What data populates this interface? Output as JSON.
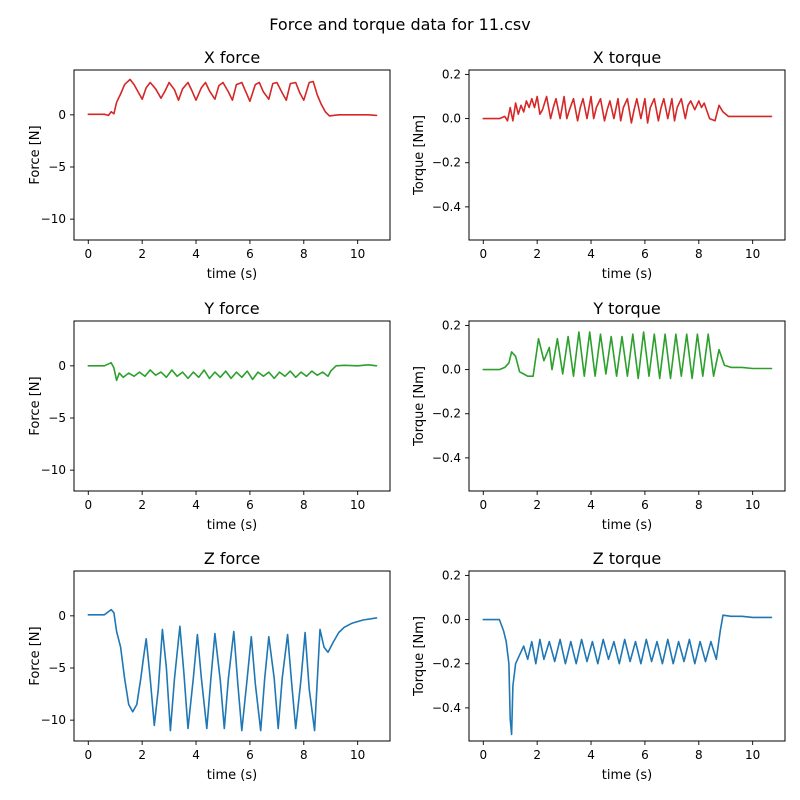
{
  "figure": {
    "title": "Force and torque data for 11.csv"
  },
  "chart_data": [
    {
      "type": "line",
      "title": "X force",
      "xlabel": "time (s)",
      "ylabel": "Force [N]",
      "color": "#d62728",
      "xlim": [
        -0.53,
        11.2
      ],
      "ylim": [
        -12,
        4.3
      ],
      "xticks": [
        0,
        2,
        4,
        6,
        8,
        10
      ],
      "yticks": [
        -10,
        -5,
        0
      ],
      "x": [
        0,
        0.2,
        0.4,
        0.6,
        0.75,
        0.85,
        0.95,
        1.05,
        1.2,
        1.35,
        1.55,
        1.7,
        1.85,
        2.0,
        2.15,
        2.3,
        2.5,
        2.7,
        2.85,
        3.0,
        3.2,
        3.35,
        3.5,
        3.7,
        3.85,
        4.0,
        4.2,
        4.35,
        4.5,
        4.7,
        4.85,
        5.0,
        5.2,
        5.35,
        5.5,
        5.7,
        5.85,
        6.0,
        6.2,
        6.35,
        6.5,
        6.7,
        6.85,
        7.0,
        7.2,
        7.35,
        7.5,
        7.7,
        7.85,
        8.0,
        8.2,
        8.35,
        8.5,
        8.65,
        8.8,
        8.95,
        9.1,
        9.3,
        9.6,
        10.0,
        10.4,
        10.7
      ],
      "y": [
        0.05,
        0.05,
        0.05,
        0.05,
        -0.05,
        0.3,
        0.1,
        1.2,
        2.0,
        2.9,
        3.4,
        2.9,
        2.2,
        1.5,
        2.6,
        3.1,
        2.5,
        1.6,
        2.3,
        3.1,
        2.4,
        1.4,
        2.5,
        3.1,
        2.3,
        1.4,
        2.6,
        3.1,
        2.3,
        1.5,
        2.8,
        3.1,
        2.2,
        1.4,
        2.9,
        3.1,
        2.2,
        1.3,
        2.9,
        3.1,
        2.2,
        1.5,
        3.0,
        3.1,
        2.1,
        1.4,
        3.0,
        3.1,
        2.1,
        1.4,
        3.1,
        3.2,
        1.9,
        1.0,
        0.3,
        -0.1,
        -0.05,
        0.0,
        0.0,
        0.0,
        0.0,
        -0.05
      ]
    },
    {
      "type": "line",
      "title": "X torque",
      "xlabel": "time (s)",
      "ylabel": "Torque [Nm]",
      "color": "#d62728",
      "xlim": [
        -0.53,
        11.2
      ],
      "ylim": [
        -0.55,
        0.22
      ],
      "xticks": [
        0,
        2,
        4,
        6,
        8,
        10
      ],
      "yticks": [
        -0.4,
        -0.2,
        0.0,
        0.2
      ],
      "x": [
        0,
        0.3,
        0.6,
        0.8,
        0.9,
        1.0,
        1.1,
        1.2,
        1.3,
        1.4,
        1.5,
        1.6,
        1.7,
        1.8,
        1.9,
        2.0,
        2.1,
        2.2,
        2.35,
        2.5,
        2.6,
        2.7,
        2.85,
        3.0,
        3.1,
        3.2,
        3.35,
        3.5,
        3.6,
        3.7,
        3.85,
        4.0,
        4.1,
        4.2,
        4.35,
        4.5,
        4.6,
        4.7,
        4.85,
        5.0,
        5.1,
        5.2,
        5.35,
        5.5,
        5.6,
        5.7,
        5.85,
        6.0,
        6.1,
        6.2,
        6.35,
        6.5,
        6.6,
        6.7,
        6.85,
        7.0,
        7.1,
        7.2,
        7.35,
        7.5,
        7.6,
        7.7,
        7.85,
        8.0,
        8.1,
        8.2,
        8.4,
        8.6,
        8.75,
        8.9,
        9.1,
        9.5,
        10.0,
        10.7
      ],
      "y": [
        0.0,
        0.0,
        0.0,
        0.01,
        -0.01,
        0.05,
        -0.01,
        0.07,
        0.02,
        0.06,
        0.03,
        0.08,
        0.05,
        0.09,
        0.05,
        0.1,
        0.02,
        0.04,
        0.1,
        0.0,
        0.05,
        0.09,
        0.0,
        0.1,
        0.0,
        0.04,
        0.09,
        -0.01,
        0.05,
        0.09,
        0.0,
        0.1,
        0.0,
        0.05,
        0.09,
        -0.01,
        0.04,
        0.08,
        0.0,
        0.09,
        -0.01,
        0.05,
        0.09,
        -0.02,
        0.04,
        0.09,
        0.0,
        0.09,
        -0.02,
        0.05,
        0.09,
        -0.01,
        0.05,
        0.09,
        0.0,
        0.09,
        -0.01,
        0.05,
        0.09,
        0.0,
        0.06,
        0.08,
        0.04,
        0.08,
        0.05,
        0.07,
        0.0,
        -0.01,
        0.06,
        0.03,
        0.01,
        0.01,
        0.01,
        0.01
      ]
    },
    {
      "type": "line",
      "title": "Y force",
      "xlabel": "time (s)",
      "ylabel": "Force [N]",
      "color": "#2ca02c",
      "xlim": [
        -0.53,
        11.2
      ],
      "ylim": [
        -12,
        4.3
      ],
      "xticks": [
        0,
        2,
        4,
        6,
        8,
        10
      ],
      "yticks": [
        -10,
        -5,
        0
      ],
      "x": [
        0,
        0.3,
        0.6,
        0.85,
        0.95,
        1.05,
        1.15,
        1.3,
        1.5,
        1.7,
        1.9,
        2.1,
        2.3,
        2.5,
        2.7,
        2.9,
        3.1,
        3.3,
        3.5,
        3.7,
        3.9,
        4.1,
        4.3,
        4.5,
        4.7,
        4.9,
        5.1,
        5.3,
        5.5,
        5.7,
        5.9,
        6.1,
        6.3,
        6.5,
        6.7,
        6.9,
        7.1,
        7.3,
        7.5,
        7.7,
        7.9,
        8.1,
        8.3,
        8.5,
        8.7,
        8.9,
        9.0,
        9.2,
        9.5,
        10.0,
        10.4,
        10.7
      ],
      "y": [
        0.0,
        0.0,
        0.0,
        0.3,
        -0.2,
        -1.4,
        -0.7,
        -1.1,
        -0.7,
        -1.0,
        -0.6,
        -1.0,
        -0.4,
        -0.9,
        -0.6,
        -1.1,
        -0.4,
        -1.0,
        -0.6,
        -1.2,
        -0.6,
        -1.1,
        -0.4,
        -1.2,
        -0.6,
        -1.1,
        -0.5,
        -1.2,
        -0.6,
        -1.1,
        -0.5,
        -1.3,
        -0.6,
        -1.0,
        -0.6,
        -1.2,
        -0.6,
        -1.0,
        -0.5,
        -1.1,
        -0.6,
        -1.0,
        -0.5,
        -0.9,
        -0.6,
        -1.0,
        -0.5,
        0.0,
        0.05,
        0.0,
        0.1,
        0.0
      ]
    },
    {
      "type": "line",
      "title": "Y torque",
      "xlabel": "time (s)",
      "ylabel": "Torque [Nm]",
      "color": "#2ca02c",
      "xlim": [
        -0.53,
        11.2
      ],
      "ylim": [
        -0.55,
        0.22
      ],
      "xticks": [
        0,
        2,
        4,
        6,
        8,
        10
      ],
      "yticks": [
        -0.4,
        -0.2,
        0.0,
        0.2
      ],
      "x": [
        0,
        0.3,
        0.6,
        0.8,
        0.95,
        1.05,
        1.2,
        1.35,
        1.5,
        1.65,
        1.85,
        2.05,
        2.25,
        2.45,
        2.55,
        2.75,
        2.95,
        3.15,
        3.35,
        3.55,
        3.75,
        3.95,
        4.15,
        4.35,
        4.55,
        4.75,
        4.95,
        5.15,
        5.35,
        5.55,
        5.75,
        5.95,
        6.15,
        6.35,
        6.55,
        6.75,
        6.95,
        7.15,
        7.35,
        7.55,
        7.75,
        7.95,
        8.15,
        8.35,
        8.55,
        8.75,
        8.95,
        9.2,
        9.6,
        10.0,
        10.7
      ],
      "y": [
        0.0,
        0.0,
        0.0,
        0.01,
        0.03,
        0.08,
        0.06,
        -0.01,
        -0.02,
        -0.03,
        -0.03,
        0.14,
        0.04,
        0.1,
        0.0,
        0.14,
        -0.02,
        0.15,
        -0.03,
        0.17,
        -0.03,
        0.17,
        -0.03,
        0.16,
        -0.02,
        0.15,
        -0.03,
        0.15,
        -0.03,
        0.16,
        -0.04,
        0.17,
        -0.03,
        0.16,
        -0.04,
        0.16,
        -0.04,
        0.16,
        -0.03,
        0.16,
        -0.04,
        0.16,
        -0.03,
        0.16,
        -0.03,
        0.09,
        0.02,
        0.01,
        0.01,
        0.005,
        0.005
      ]
    },
    {
      "type": "line",
      "title": "Z force",
      "xlabel": "time (s)",
      "ylabel": "Force [N]",
      "color": "#1f77b4",
      "xlim": [
        -0.53,
        11.2
      ],
      "ylim": [
        -12,
        4.3
      ],
      "xticks": [
        0,
        2,
        4,
        6,
        8,
        10
      ],
      "yticks": [
        -10,
        -5,
        0
      ],
      "x": [
        0,
        0.3,
        0.6,
        0.85,
        0.95,
        1.05,
        1.2,
        1.35,
        1.5,
        1.65,
        1.8,
        1.95,
        2.05,
        2.15,
        2.3,
        2.45,
        2.6,
        2.75,
        2.9,
        3.05,
        3.2,
        3.4,
        3.55,
        3.7,
        3.9,
        4.05,
        4.2,
        4.4,
        4.55,
        4.7,
        4.9,
        5.05,
        5.2,
        5.4,
        5.55,
        5.7,
        5.9,
        6.05,
        6.2,
        6.4,
        6.55,
        6.7,
        6.9,
        7.05,
        7.2,
        7.4,
        7.55,
        7.7,
        7.9,
        8.05,
        8.2,
        8.4,
        8.6,
        8.75,
        8.9,
        9.1,
        9.3,
        9.5,
        9.8,
        10.2,
        10.7
      ],
      "y": [
        0.1,
        0.1,
        0.1,
        0.6,
        0.3,
        -1.5,
        -3.0,
        -6.0,
        -8.5,
        -9.2,
        -8.5,
        -6.0,
        -4.0,
        -2.2,
        -6.0,
        -10.5,
        -7.0,
        -1.3,
        -5.0,
        -11.0,
        -6.0,
        -1.0,
        -5.5,
        -10.8,
        -6.0,
        -1.8,
        -6.0,
        -10.8,
        -6.0,
        -1.7,
        -6.2,
        -10.8,
        -6.0,
        -1.5,
        -6.5,
        -11.0,
        -6.0,
        -2.0,
        -6.5,
        -11.0,
        -6.0,
        -2.0,
        -6.0,
        -10.8,
        -6.0,
        -1.8,
        -6.5,
        -10.8,
        -6.0,
        -1.6,
        -7.0,
        -11.0,
        -1.3,
        -3.0,
        -3.5,
        -2.5,
        -1.6,
        -1.1,
        -0.7,
        -0.4,
        -0.2
      ]
    },
    {
      "type": "line",
      "title": "Z torque",
      "xlabel": "time (s)",
      "ylabel": "Torque [Nm]",
      "color": "#1f77b4",
      "xlim": [
        -0.53,
        11.2
      ],
      "ylim": [
        -0.55,
        0.22
      ],
      "xticks": [
        0,
        2,
        4,
        6,
        8,
        10
      ],
      "yticks": [
        -0.4,
        -0.2,
        0.0,
        0.2
      ],
      "x": [
        0,
        0.3,
        0.6,
        0.75,
        0.85,
        0.95,
        1.0,
        1.05,
        1.1,
        1.2,
        1.35,
        1.5,
        1.65,
        1.8,
        1.95,
        2.1,
        2.25,
        2.45,
        2.65,
        2.85,
        3.05,
        3.25,
        3.45,
        3.65,
        3.85,
        4.05,
        4.25,
        4.45,
        4.65,
        4.85,
        5.05,
        5.25,
        5.45,
        5.65,
        5.85,
        6.05,
        6.25,
        6.45,
        6.65,
        6.85,
        7.05,
        7.25,
        7.45,
        7.65,
        7.85,
        8.05,
        8.25,
        8.45,
        8.65,
        8.8,
        8.9,
        9.2,
        9.6,
        10.0,
        10.4,
        10.7
      ],
      "y": [
        0.0,
        0.0,
        0.0,
        -0.05,
        -0.1,
        -0.2,
        -0.45,
        -0.52,
        -0.3,
        -0.2,
        -0.16,
        -0.12,
        -0.18,
        -0.1,
        -0.2,
        -0.09,
        -0.18,
        -0.1,
        -0.19,
        -0.09,
        -0.2,
        -0.1,
        -0.2,
        -0.09,
        -0.19,
        -0.1,
        -0.2,
        -0.09,
        -0.18,
        -0.1,
        -0.2,
        -0.09,
        -0.19,
        -0.1,
        -0.2,
        -0.09,
        -0.19,
        -0.1,
        -0.2,
        -0.09,
        -0.2,
        -0.1,
        -0.19,
        -0.09,
        -0.2,
        -0.1,
        -0.19,
        -0.1,
        -0.18,
        -0.05,
        0.02,
        0.015,
        0.015,
        0.01,
        0.01,
        0.01
      ]
    }
  ]
}
